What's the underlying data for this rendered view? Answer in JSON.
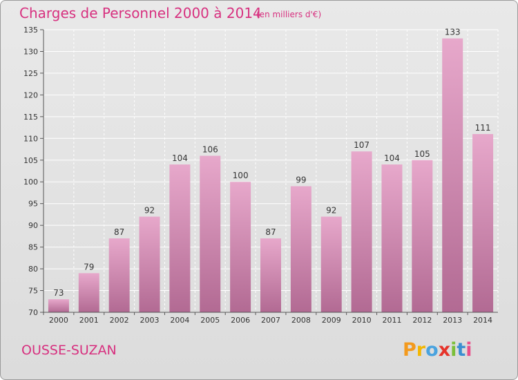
{
  "header": {
    "title": "Charges de Personnel 2000 à 2014",
    "subtitle": "(en milliers d'€)"
  },
  "footer": {
    "commune": "OUSSE-SUZAN",
    "logo_letters": [
      "P",
      "r",
      "o",
      "x",
      "i",
      "t",
      "i"
    ],
    "logo_colors": [
      "#f39a1e",
      "#f2b705",
      "#4aa3df",
      "#e6332a",
      "#7bbf3a",
      "#3b8fd1",
      "#e94e8a"
    ]
  },
  "colors": {
    "bar_top": "#e7a8cb",
    "bar_bottom": "#b26a93",
    "title": "#d7307f",
    "grid": "#ffffff"
  },
  "chart_data": {
    "type": "bar",
    "title": "Charges de Personnel 2000 à 2014",
    "subtitle": "(en milliers d'€)",
    "categories": [
      "2000",
      "2001",
      "2002",
      "2003",
      "2004",
      "2005",
      "2006",
      "2007",
      "2008",
      "2009",
      "2010",
      "2011",
      "2012",
      "2013",
      "2014"
    ],
    "values": [
      73,
      79,
      87,
      92,
      104,
      106,
      100,
      87,
      99,
      92,
      107,
      104,
      105,
      133,
      111
    ],
    "ylim": [
      70,
      135
    ],
    "yticks": [
      70,
      75,
      80,
      85,
      90,
      95,
      100,
      105,
      110,
      115,
      120,
      125,
      130,
      135
    ],
    "grid": true,
    "xlabel": "",
    "ylabel": ""
  }
}
